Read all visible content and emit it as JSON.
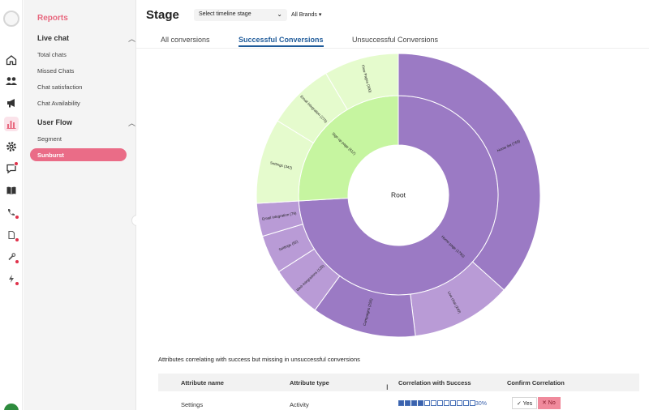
{
  "sidebar": {
    "title": "Reports",
    "groups": [
      {
        "label": "Live chat",
        "items": [
          "Total chats",
          "Missed Chats",
          "Chat satisfaction",
          "Chat Availability"
        ]
      },
      {
        "label": "User Flow",
        "items": [
          "Segment",
          "Sunburst"
        ]
      }
    ],
    "active_item": "Sunburst"
  },
  "rail_icons": [
    "logo-icon",
    "home-icon",
    "users-icon",
    "megaphone-icon",
    "reports-icon",
    "settings-icon",
    "chat-icon",
    "book-icon",
    "phone-icon",
    "document-icon",
    "tool-icon",
    "bolt-icon",
    "avatar"
  ],
  "header": {
    "title": "Stage",
    "stage_select": "Select timeline stage",
    "brand_select": "All Brands ▾"
  },
  "tabs": [
    "All conversions",
    "Successful Conversions",
    "Unsuccessful Conversions"
  ],
  "active_tab": "Successful Conversions",
  "colors": {
    "accent": "#ea6c87",
    "tab_active": "#1f5b9a",
    "purple_dark": "#9b7ac4",
    "purple_light": "#b99bd6",
    "green_dark": "#c6f5a0",
    "green_light": "#e5fbcd"
  },
  "chart_data": {
    "type": "sunburst",
    "center_label": "Root",
    "inner_ring": [
      {
        "label": "Home page (1750)",
        "value": 1750,
        "color": "#9b7ac4"
      },
      {
        "label": "Sign up page (612)",
        "value": 612,
        "color": "#c6f5a0"
      }
    ],
    "outer_ring": [
      {
        "label": "Home list (769)",
        "value": 769,
        "parent": "Home page (1750)",
        "color": "#9b7ac4"
      },
      {
        "label": "Live chat (240)",
        "value": 240,
        "parent": "Home page (1750)",
        "color": "#b99bd6"
      },
      {
        "label": "Campaigns (250)",
        "value": 250,
        "parent": "Home page (1750)",
        "color": "#9b7ac4"
      },
      {
        "label": "Web integrations (125)",
        "value": 125,
        "parent": "Home page (1750)",
        "color": "#b99bd6"
      },
      {
        "label": "Settings (92)",
        "value": 92,
        "parent": "Home page (1750)",
        "color": "#b99bd6"
      },
      {
        "label": "Email integration (79)",
        "value": 79,
        "parent": "Home page (1750)",
        "color": "#b99bd6"
      },
      {
        "label": "Settings (342)",
        "value": 342,
        "parent": "Sign up page (612)",
        "color": "#e5fbcd"
      },
      {
        "label": "Email integration (270)",
        "value": 270,
        "parent": "Sign up page (612)",
        "color": "#e5fbcd"
      },
      {
        "label": "Flow Pages (300)",
        "value": 300,
        "parent": "Sign up page (612)",
        "color": "#e5fbcd"
      }
    ]
  },
  "attributes": {
    "title": "Attributes correlating with success but missing in unsuccessful conversions",
    "columns": [
      "Attribute name",
      "Attribute type",
      "Correlation with Success",
      "Confirm Correlation"
    ],
    "rows": [
      {
        "name": "Settings",
        "type": "Activity",
        "correlation": 0.3,
        "correlation_label": "30%",
        "yes": "✓ Yes",
        "no": "✕ No"
      }
    ]
  }
}
